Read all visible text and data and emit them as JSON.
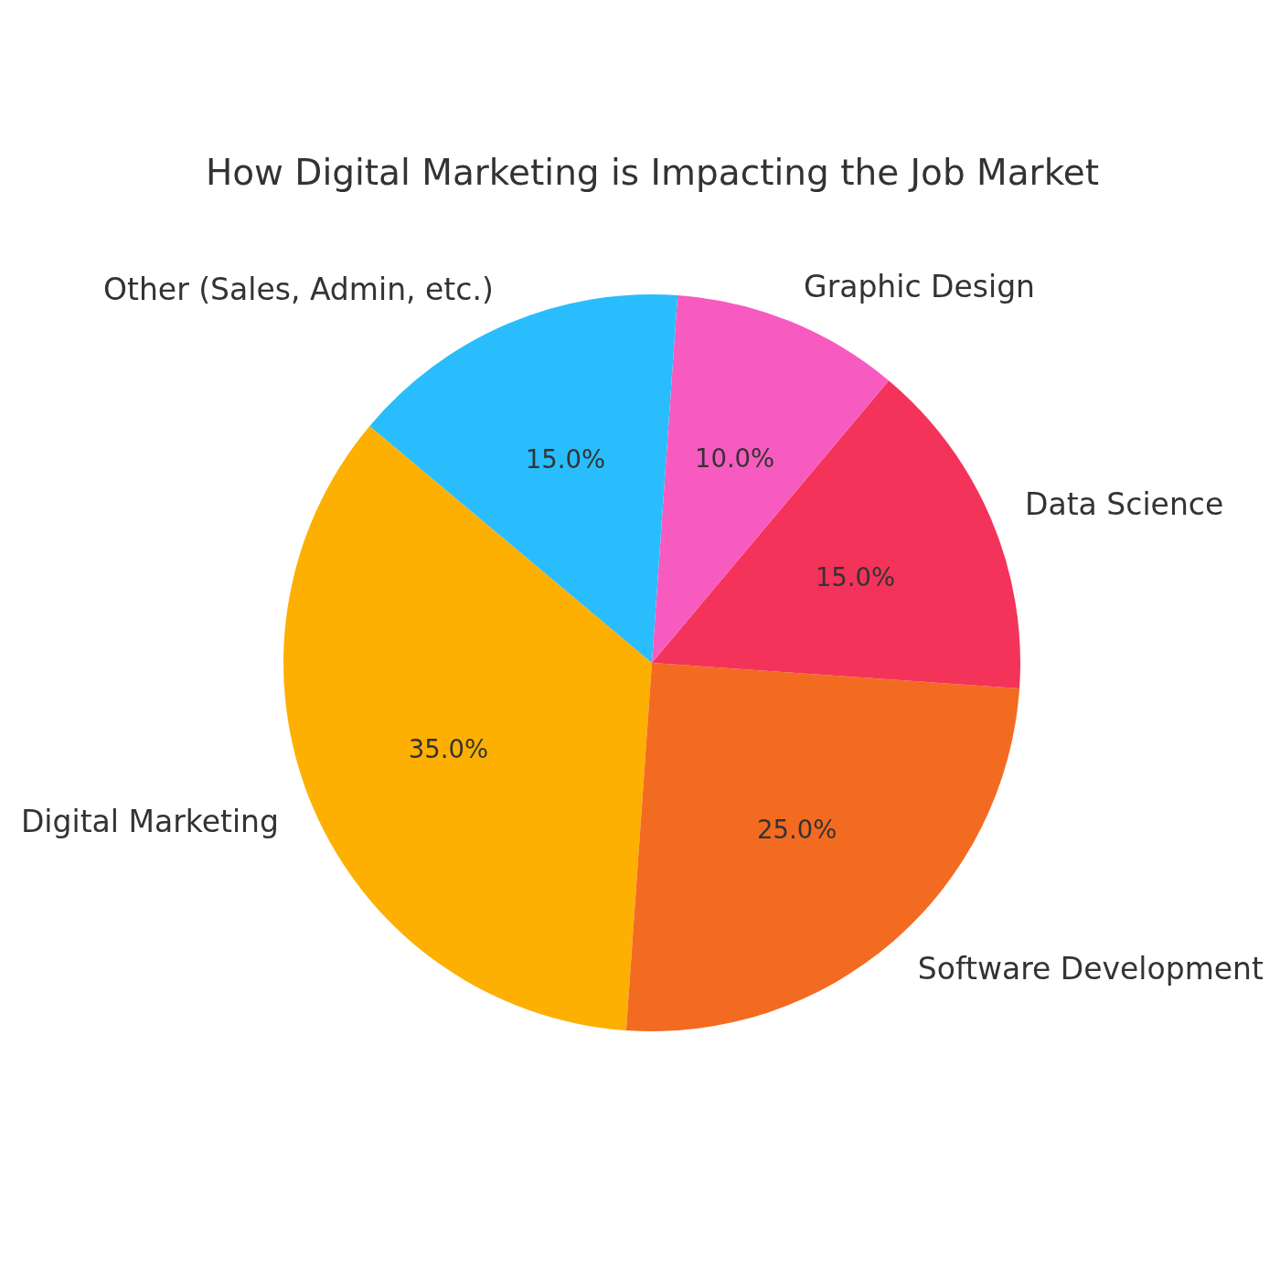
{
  "chart_data": {
    "type": "pie",
    "title": "How Digital Marketing is Impacting the Job Market",
    "categories": [
      "Digital Marketing",
      "Software Development",
      "Data Science",
      "Graphic Design",
      "Other (Sales, Admin, etc.)"
    ],
    "values": [
      35,
      25,
      15,
      10,
      15
    ],
    "colors": [
      "#fdb001",
      "#f36b21",
      "#f4335a",
      "#f75bc0",
      "#29bdfd"
    ],
    "value_labels": [
      "35.0%",
      "25.0%",
      "15.0%",
      "10.0%",
      "15.0%"
    ]
  }
}
